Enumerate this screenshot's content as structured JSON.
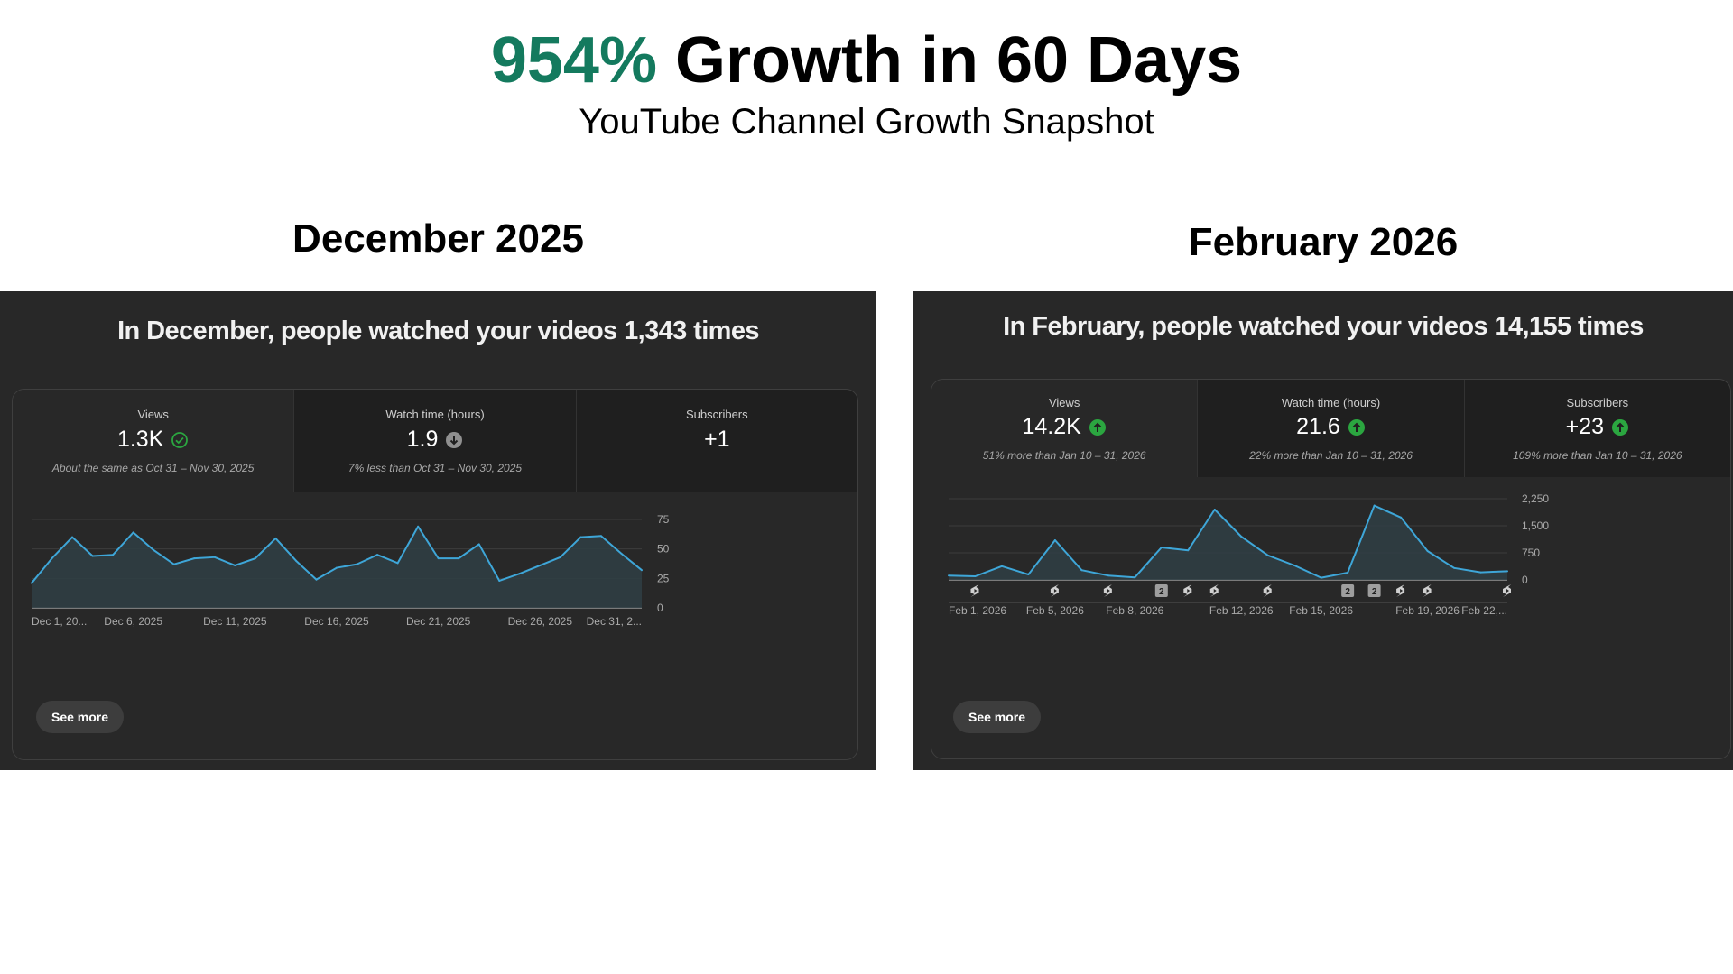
{
  "hero": {
    "title_highlight": "954%",
    "title_rest": " Growth in 60 Days",
    "subtitle": "YouTube Channel Growth Snapshot"
  },
  "colors": {
    "highlight": "#147a5e",
    "panel_bg": "#282828",
    "line": "#3ea6d8",
    "up_icon": "#2ba640"
  },
  "left": {
    "section_title": "December 2025",
    "heading": "In December, people watched your videos 1,343 times",
    "metrics": [
      {
        "label": "Views",
        "value": "1.3K",
        "note": "About the same as Oct 31 – Nov 30, 2025",
        "icon": "check-circle-icon"
      },
      {
        "label": "Watch time (hours)",
        "value": "1.9",
        "note": "7% less than Oct 31 – Nov 30, 2025",
        "icon": "arrow-down-circle-icon"
      },
      {
        "label": "Subscribers",
        "value": "+1",
        "note": "",
        "icon": ""
      }
    ],
    "see_more": "See more",
    "chart_data": {
      "type": "area",
      "ylim": [
        0,
        75
      ],
      "ytick_labels": [
        "0",
        "25",
        "50",
        "75"
      ],
      "grid": true,
      "xtick_labels": [
        "Dec 1, 20...",
        "Dec 6, 2025",
        "Dec 11, 2025",
        "Dec 16, 2025",
        "Dec 21, 2025",
        "Dec 26, 2025",
        "Dec 31, 2..."
      ],
      "xtick_index": [
        0,
        5,
        10,
        15,
        20,
        25,
        30
      ],
      "values": [
        21,
        42,
        60,
        44,
        45,
        64,
        49,
        37,
        42,
        43,
        36,
        42,
        59,
        40,
        24,
        34,
        37,
        45,
        38,
        69,
        42,
        42,
        54,
        23,
        29,
        36,
        43,
        60,
        61,
        46,
        32
      ]
    }
  },
  "right": {
    "section_title": "February 2026",
    "heading": "In February, people watched your videos 14,155 times",
    "metrics": [
      {
        "label": "Views",
        "value": "14.2K",
        "note": "51% more than Jan 10 – 31, 2026",
        "icon": "arrow-up-circle-icon"
      },
      {
        "label": "Watch time (hours)",
        "value": "21.6",
        "note": "22% more than Jan 10 – 31, 2026",
        "icon": "arrow-up-circle-icon"
      },
      {
        "label": "Subscribers",
        "value": "+23",
        "note": "109% more than Jan 10 – 31, 2026",
        "icon": "arrow-up-circle-icon"
      }
    ],
    "see_more": "See more",
    "markers": [
      {
        "day": 2,
        "type": "shorts-icon"
      },
      {
        "day": 5,
        "type": "shorts-icon"
      },
      {
        "day": 7,
        "type": "shorts-icon"
      },
      {
        "day": 9,
        "type": "count",
        "label": "2"
      },
      {
        "day": 10,
        "type": "shorts-icon"
      },
      {
        "day": 11,
        "type": "shorts-icon"
      },
      {
        "day": 13,
        "type": "shorts-icon"
      },
      {
        "day": 16,
        "type": "count",
        "label": "2"
      },
      {
        "day": 17,
        "type": "count",
        "label": "2"
      },
      {
        "day": 18,
        "type": "shorts-icon"
      },
      {
        "day": 19,
        "type": "shorts-icon"
      },
      {
        "day": 22,
        "type": "shorts-icon"
      }
    ],
    "chart_data": {
      "type": "area",
      "ylim": [
        0,
        2250
      ],
      "ytick_labels": [
        "0",
        "750",
        "1,500",
        "2,250"
      ],
      "grid": true,
      "xtick_labels": [
        "Feb 1, 2026",
        "Feb 5, 2026",
        "Feb 8, 2026",
        "Feb 12, 2026",
        "Feb 15, 2026",
        "Feb 19, 2026",
        "Feb 22,..."
      ],
      "xtick_index": [
        0,
        4,
        7,
        11,
        14,
        18,
        21
      ],
      "values": [
        120,
        100,
        380,
        150,
        1100,
        270,
        120,
        70,
        900,
        820,
        1950,
        1200,
        680,
        400,
        60,
        200,
        2060,
        1730,
        800,
        330,
        210,
        240
      ]
    }
  }
}
